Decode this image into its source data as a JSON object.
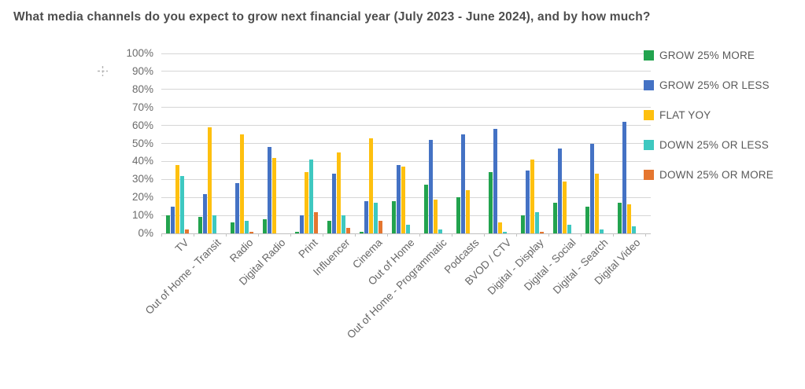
{
  "title": "What media channels do you expect to grow next financial year (July 2023 - June 2024), and by how much?",
  "chart_data": {
    "type": "bar",
    "title": "What media channels do you expect to grow next financial year (July 2023 - June 2024), and by how much?",
    "categories": [
      "TV",
      "Out of Home - Transit",
      "Radio",
      "Digital Radio",
      "Print",
      "Influencer",
      "Cinema",
      "Out of Home",
      "Out of Home - Programmatic",
      "Podcasts",
      "BVOD / CTV",
      "Digital - Display",
      "Digital - Social",
      "Digital - Search",
      "Digital Video"
    ],
    "series": [
      {
        "name": "GROW 25% MORE",
        "color": "#22A34E",
        "values": [
          10,
          9,
          6,
          8,
          1,
          7,
          1,
          18,
          27,
          20,
          34,
          10,
          17,
          15,
          17
        ]
      },
      {
        "name": "GROW 25% OR LESS",
        "color": "#4472C4",
        "values": [
          15,
          22,
          28,
          48,
          10,
          33,
          18,
          38,
          52,
          55,
          58,
          35,
          47,
          50,
          62
        ]
      },
      {
        "name": "FLAT YOY",
        "color": "#FEC00F",
        "values": [
          38,
          59,
          55,
          42,
          34,
          45,
          53,
          37,
          19,
          24,
          6,
          41,
          29,
          33,
          16
        ]
      },
      {
        "name": "DOWN 25% OR LESS",
        "color": "#3EC8C0",
        "values": [
          32,
          10,
          7,
          0,
          41,
          10,
          17,
          5,
          2,
          0,
          1,
          12,
          5,
          2,
          4
        ]
      },
      {
        "name": "DOWN 25% OR MORE",
        "color": "#E5762F",
        "values": [
          2,
          0,
          1,
          0,
          12,
          3,
          7,
          0,
          0,
          0,
          0,
          1,
          0,
          0,
          0
        ]
      }
    ],
    "xlabel": "",
    "ylabel": "",
    "ylim": [
      0,
      100
    ],
    "ytick_step": 10,
    "ytick_labels": [
      "0%",
      "10%",
      "20%",
      "30%",
      "40%",
      "50%",
      "60%",
      "70%",
      "80%",
      "90%",
      "100%"
    ],
    "grid": true,
    "legend_position": "right"
  }
}
